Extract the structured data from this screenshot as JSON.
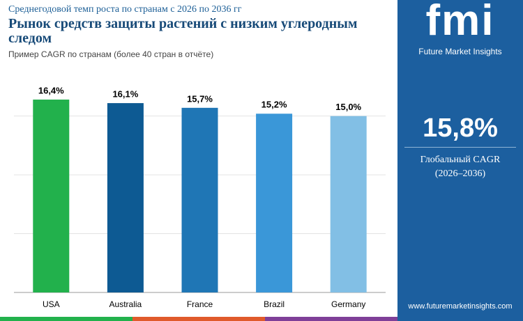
{
  "chart_data": {
    "type": "bar",
    "subtitle": "Среднегодовой темп роста по странам с 2026 по 2036 гг",
    "title": "Рынок средств защиты растений с низким углеродным следом",
    "note": "Пример CAGR по странам (более 40 стран в отчёте)",
    "categories": [
      "USA",
      "Australia",
      "France",
      "Brazil",
      "Germany"
    ],
    "values": [
      16.4,
      16.1,
      15.7,
      15.2,
      15.0
    ],
    "value_labels": [
      "16,4%",
      "16,1%",
      "15,7%",
      "15,2%",
      "15,0%"
    ],
    "colors": [
      "#22b14c",
      "#0d5a93",
      "#1f76b5",
      "#3a97d8",
      "#82bfe5"
    ],
    "ylim": [
      0,
      18
    ],
    "yticks": [
      0,
      5,
      10,
      15
    ],
    "grid": true
  },
  "sidebar": {
    "logo": "fmi",
    "brand": "Future Market Insights",
    "global_cagr": "15,8%",
    "label": "Глобальный CAGR",
    "period": "(2026–2036)",
    "url": "www.futuremarketinsights.com"
  }
}
